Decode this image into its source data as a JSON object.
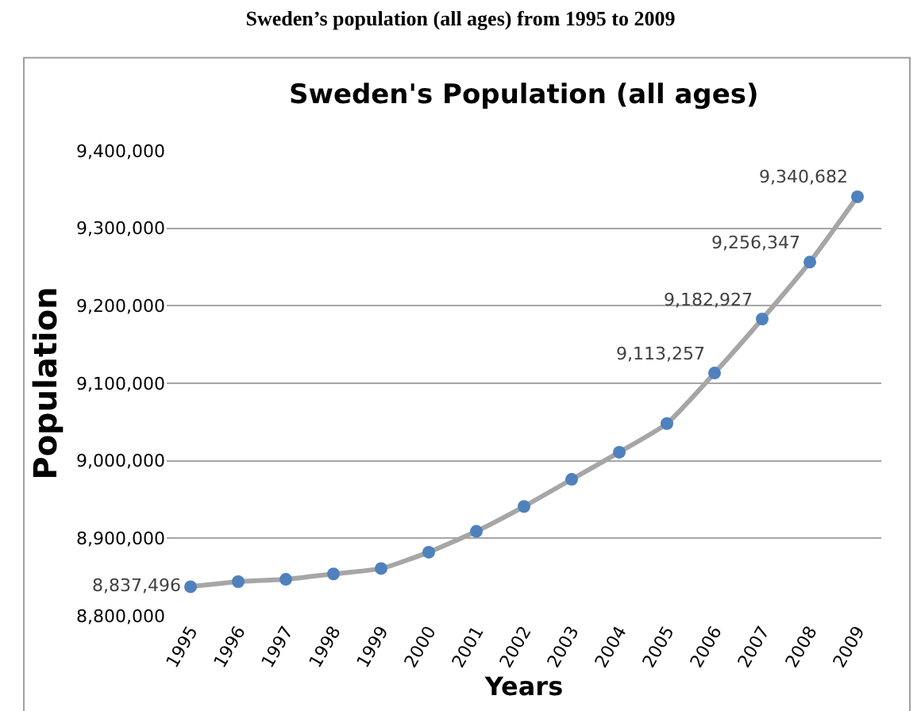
{
  "chart_data": {
    "type": "line",
    "title": "Sweden’s population (all ages) from 1995 to 2009",
    "subtitle": "Sweden's Population (all ages)",
    "xlabel": "Years",
    "ylabel": "Population",
    "categories": [
      "1995",
      "1996",
      "1997",
      "1998",
      "1999",
      "2000",
      "2001",
      "2002",
      "2003",
      "2004",
      "2005",
      "2006",
      "2007",
      "2008",
      "2009"
    ],
    "series": [
      {
        "color": "#4f81bd",
        "values": [
          8837496,
          8844000,
          8847000,
          8854000,
          8861000,
          8882000,
          8909000,
          8941000,
          8976000,
          9011000,
          9048000,
          9113257,
          9182927,
          9256347,
          9340682
        ],
        "value_labels": [
          "8,837,496",
          null,
          null,
          null,
          null,
          null,
          null,
          null,
          null,
          null,
          null,
          "9,113,257",
          "9,182,927",
          "9,256,347",
          "9,340,682"
        ]
      }
    ],
    "ylim": [
      8800000,
      9400000
    ],
    "yticks": [
      {
        "value": 8800000,
        "label": "8,800,000"
      },
      {
        "value": 8900000,
        "label": "8,900,000"
      },
      {
        "value": 9000000,
        "label": "9,000,000"
      },
      {
        "value": 9100000,
        "label": "9,100,000"
      },
      {
        "value": 9200000,
        "label": "9,200,000"
      },
      {
        "value": 9300000,
        "label": "9,300,000"
      },
      {
        "value": 9400000,
        "label": "9,400,000"
      }
    ],
    "grid": "y",
    "legend": false,
    "marker": "circle",
    "line_style": "solid"
  }
}
